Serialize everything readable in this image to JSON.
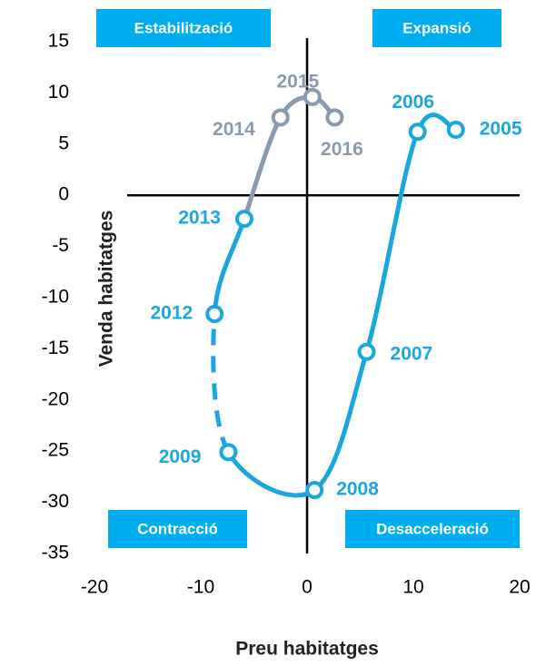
{
  "chart_data": {
    "type": "line",
    "xlabel": "Preu habitatges",
    "ylabel": "Venda habitatges",
    "xlim": [
      -20,
      20
    ],
    "xticks": [
      -20,
      -10,
      0,
      10,
      20
    ],
    "ylim": [
      -35,
      15
    ],
    "yticks": [
      15,
      10,
      5,
      0,
      -5,
      -10,
      -15,
      -20,
      -25,
      -30,
      -35
    ],
    "quadrants": {
      "top_left": "Estabilització",
      "top_right": "Expansió",
      "bottom_left": "Contracció",
      "bottom_right": "Desacceleració"
    },
    "quadrant_color": "#00aeef",
    "series": [
      {
        "color": "#1aa7e0",
        "labels": [
          "2005",
          "2006",
          "2007",
          "2008",
          "2009",
          "2012",
          "2013"
        ],
        "x": [
          14.0,
          10.4,
          5.6,
          0.7,
          -7.4,
          -8.7,
          -5.9
        ],
        "values": [
          6.4,
          6.2,
          -15.3,
          -28.8,
          -25.1,
          -11.6,
          -2.3
        ],
        "segment_styles": [
          "solid",
          "solid",
          "solid",
          "solid",
          "dashed",
          "solid"
        ]
      },
      {
        "color": "#8a9bae",
        "labels": [
          "2014",
          "2015",
          "2016"
        ],
        "x": [
          -2.5,
          0.5,
          2.6
        ],
        "values": [
          7.6,
          9.6,
          7.6
        ],
        "continues": true
      }
    ]
  }
}
